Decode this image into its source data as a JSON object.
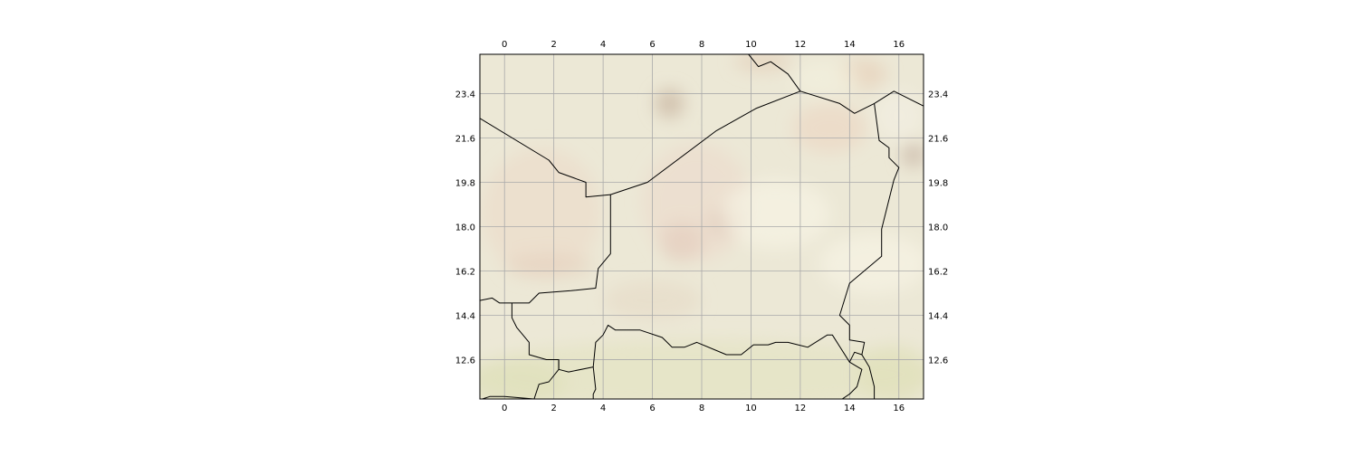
{
  "map": {
    "projection": "PlateCarree",
    "extent": {
      "lon": [
        -1,
        17
      ],
      "lat": [
        11,
        25
      ]
    },
    "gridlines": true,
    "background": "terrain-shaded-relief",
    "colors": {
      "background_base": "#ece8d6",
      "gridline": "#aaaaaa",
      "border": "#000000",
      "frame": "#000000"
    },
    "x_ticks": [
      0,
      2,
      4,
      6,
      8,
      10,
      12,
      14,
      16
    ],
    "x_tick_labels": [
      "0",
      "2",
      "4",
      "6",
      "8",
      "10",
      "12",
      "14",
      "16"
    ],
    "y_ticks": [
      12.6,
      14.4,
      16.2,
      18.0,
      19.8,
      21.6,
      23.4
    ],
    "y_tick_labels": [
      "12.6",
      "14.4",
      "16.2",
      "18.0",
      "19.8",
      "21.6",
      "23.4"
    ],
    "borders": [
      [
        [
          -1.0,
          22.4
        ],
        [
          1.8,
          20.7
        ],
        [
          2.2,
          20.2
        ],
        [
          3.3,
          19.8
        ],
        [
          3.3,
          19.2
        ],
        [
          4.3,
          19.3
        ],
        [
          4.3,
          16.9
        ],
        [
          3.8,
          16.3
        ],
        [
          3.7,
          15.5
        ],
        [
          2.7,
          15.4
        ],
        [
          1.4,
          15.3
        ],
        [
          1.0,
          14.9
        ],
        [
          0.2,
          14.9
        ],
        [
          -0.2,
          14.9
        ],
        [
          -0.5,
          15.1
        ],
        [
          -1.0,
          15.0
        ]
      ],
      [
        [
          4.3,
          19.3
        ],
        [
          5.8,
          19.8
        ],
        [
          8.6,
          21.9
        ],
        [
          10.2,
          22.8
        ],
        [
          12.0,
          23.5
        ],
        [
          13.6,
          23.0
        ],
        [
          14.2,
          22.6
        ],
        [
          15.0,
          23.0
        ],
        [
          15.8,
          23.5
        ],
        [
          17.0,
          22.9
        ]
      ],
      [
        [
          9.9,
          25.0
        ],
        [
          10.3,
          24.5
        ],
        [
          10.8,
          24.7
        ],
        [
          11.5,
          24.2
        ],
        [
          12.0,
          23.5
        ]
      ],
      [
        [
          15.0,
          23.0
        ],
        [
          15.2,
          21.5
        ],
        [
          15.6,
          21.2
        ],
        [
          15.6,
          20.8
        ],
        [
          16.0,
          20.4
        ],
        [
          15.8,
          19.9
        ],
        [
          15.3,
          17.9
        ],
        [
          15.3,
          16.8
        ],
        [
          14.0,
          15.7
        ],
        [
          13.6,
          14.4
        ],
        [
          14.0,
          14.0
        ],
        [
          14.0,
          13.4
        ],
        [
          14.6,
          13.3
        ],
        [
          14.5,
          12.8
        ],
        [
          14.2,
          12.9
        ],
        [
          14.0,
          12.5
        ]
      ],
      [
        [
          0.3,
          14.9
        ],
        [
          0.3,
          14.3
        ],
        [
          0.5,
          13.9
        ],
        [
          1.0,
          13.3
        ],
        [
          1.0,
          12.8
        ],
        [
          1.7,
          12.6
        ],
        [
          2.2,
          12.6
        ],
        [
          2.2,
          12.2
        ],
        [
          2.6,
          12.1
        ],
        [
          3.6,
          12.3
        ],
        [
          3.7,
          13.3
        ],
        [
          4.0,
          13.6
        ],
        [
          4.2,
          14.0
        ],
        [
          4.5,
          13.8
        ],
        [
          5.5,
          13.8
        ],
        [
          6.4,
          13.5
        ],
        [
          6.8,
          13.1
        ],
        [
          7.3,
          13.1
        ],
        [
          7.8,
          13.3
        ],
        [
          9.0,
          12.8
        ],
        [
          9.6,
          12.8
        ],
        [
          10.1,
          13.2
        ],
        [
          10.7,
          13.2
        ],
        [
          11.0,
          13.3
        ],
        [
          11.5,
          13.3
        ],
        [
          12.3,
          13.1
        ],
        [
          13.1,
          13.6
        ],
        [
          13.3,
          13.6
        ],
        [
          14.0,
          12.5
        ],
        [
          14.5,
          12.2
        ],
        [
          14.3,
          11.5
        ],
        [
          14.0,
          11.2
        ],
        [
          13.7,
          11.0
        ]
      ],
      [
        [
          3.6,
          12.3
        ],
        [
          3.7,
          11.4
        ],
        [
          3.6,
          11.2
        ],
        [
          3.6,
          11.0
        ]
      ],
      [
        [
          2.2,
          12.6
        ],
        [
          2.2,
          12.2
        ],
        [
          1.8,
          11.7
        ],
        [
          1.4,
          11.6
        ],
        [
          1.2,
          11.0
        ],
        [
          0.0,
          11.1
        ],
        [
          -0.6,
          11.1
        ],
        [
          -0.9,
          11.0
        ]
      ],
      [
        [
          14.5,
          12.8
        ],
        [
          14.8,
          12.3
        ],
        [
          15.0,
          11.5
        ],
        [
          15.0,
          11.0
        ]
      ]
    ],
    "relief_patches": [
      {
        "center": [
          6.7,
          23.0
        ],
        "radius": [
          0.6,
          0.6
        ],
        "color": "#cbb8a4",
        "opacity": 0.75
      },
      {
        "center": [
          9.0,
          18.2
        ],
        "radius": [
          0.7,
          0.6
        ],
        "color": "#cdb8a6",
        "opacity": 0.7
      },
      {
        "center": [
          7.2,
          17.4
        ],
        "radius": [
          0.9,
          0.8
        ],
        "color": "#d9c0ae",
        "opacity": 0.6
      },
      {
        "center": [
          16.6,
          20.9
        ],
        "radius": [
          0.5,
          0.5
        ],
        "color": "#c7b5a5",
        "opacity": 0.7
      },
      {
        "center": [
          14.5,
          24.2
        ],
        "radius": [
          1.0,
          0.6
        ],
        "color": "#e6cbb4",
        "opacity": 0.6
      },
      {
        "center": [
          10.5,
          24.7
        ],
        "radius": [
          1.2,
          0.4
        ],
        "color": "#e2cbb6",
        "opacity": 0.6
      },
      {
        "center": [
          13.2,
          22.0
        ],
        "radius": [
          1.5,
          1.0
        ],
        "color": "#ecd3c0",
        "opacity": 0.55
      },
      {
        "center": [
          1.5,
          18.6
        ],
        "radius": [
          2.4,
          2.6
        ],
        "color": "#ecd9c6",
        "opacity": 0.55
      },
      {
        "center": [
          7.8,
          19.0
        ],
        "radius": [
          2.2,
          2.4
        ],
        "color": "#edd8c9",
        "opacity": 0.5
      },
      {
        "center": [
          1.8,
          16.4
        ],
        "radius": [
          1.8,
          0.5
        ],
        "color": "#e6d0bc",
        "opacity": 0.55
      },
      {
        "center": [
          6.0,
          15.0
        ],
        "radius": [
          2.0,
          0.8
        ],
        "color": "#e6d8c4",
        "opacity": 0.5
      },
      {
        "center": [
          11.0,
          18.5
        ],
        "radius": [
          2.2,
          1.4
        ],
        "color": "#f6f3e4",
        "opacity": 0.7
      },
      {
        "center": [
          15.0,
          16.5
        ],
        "radius": [
          2.2,
          1.2
        ],
        "color": "#f6f3e4",
        "opacity": 0.7
      },
      {
        "center": [
          13.0,
          24.0
        ],
        "radius": [
          1.4,
          0.7
        ],
        "color": "#f3f1df",
        "opacity": 0.6
      },
      {
        "center": [
          16.0,
          22.5
        ],
        "radius": [
          1.0,
          1.0
        ],
        "color": "#f4f0e4",
        "opacity": 0.6
      },
      {
        "center": [
          8.0,
          12.0
        ],
        "radius": [
          9.5,
          1.4
        ],
        "color": "#e2e3bf",
        "opacity": 0.6
      },
      {
        "center": [
          15.8,
          12.0
        ],
        "radius": [
          1.5,
          1.2
        ],
        "color": "#e0dfb8",
        "opacity": 0.6
      },
      {
        "center": [
          0.5,
          11.6
        ],
        "radius": [
          2.0,
          1.0
        ],
        "color": "#dee0b8",
        "opacity": 0.6
      }
    ]
  }
}
